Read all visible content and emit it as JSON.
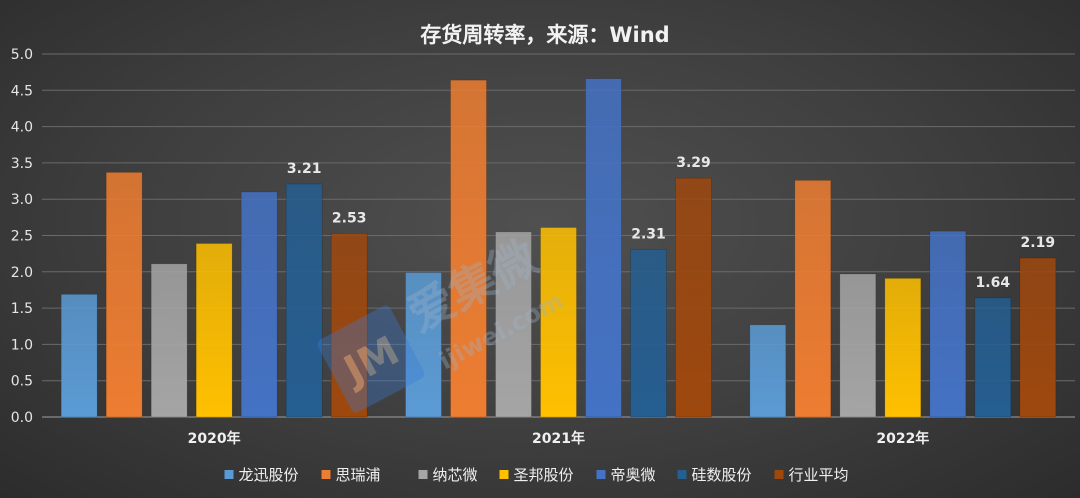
{
  "chart_data": {
    "type": "bar",
    "title": "存货周转率，来源：Wind",
    "categories": [
      "2020年",
      "2021年",
      "2022年"
    ],
    "ylim": [
      0,
      5.0
    ],
    "yticks": [
      "0.0",
      "0.5",
      "1.0",
      "1.5",
      "2.0",
      "2.5",
      "3.0",
      "3.5",
      "4.0",
      "4.5",
      "5.0"
    ],
    "legend_position": "bottom",
    "grid": true,
    "series": [
      {
        "name": "龙迅股份",
        "color": "#5b9bd5",
        "values": [
          1.69,
          1.99,
          1.27
        ]
      },
      {
        "name": "思瑞浦",
        "color": "#ed7d31",
        "values": [
          3.37,
          4.64,
          3.26
        ]
      },
      {
        "name": "纳芯微",
        "color": "#a5a5a5",
        "values": [
          2.11,
          2.55,
          1.97
        ]
      },
      {
        "name": "圣邦股份",
        "color": "#ffc000",
        "values": [
          2.39,
          2.61,
          1.91
        ]
      },
      {
        "name": "帝奥微",
        "color": "#4472c4",
        "values": [
          3.1,
          4.66,
          2.56
        ]
      },
      {
        "name": "硅数股份",
        "color": "#255e91",
        "values": [
          3.21,
          2.31,
          1.64
        ]
      },
      {
        "name": "行业平均",
        "color": "#9e480e",
        "values": [
          2.53,
          3.29,
          2.19
        ]
      }
    ],
    "data_labels": [
      {
        "series": 5,
        "category": 0,
        "text": "3.21"
      },
      {
        "series": 6,
        "category": 0,
        "text": "2.53"
      },
      {
        "series": 5,
        "category": 1,
        "text": "2.31"
      },
      {
        "series": 6,
        "category": 1,
        "text": "3.29"
      },
      {
        "series": 5,
        "category": 2,
        "text": "1.64"
      },
      {
        "series": 6,
        "category": 2,
        "text": "2.19"
      }
    ]
  },
  "watermark": {
    "text": "爱集微",
    "url": "ijiwei.com",
    "logo": "JM"
  }
}
